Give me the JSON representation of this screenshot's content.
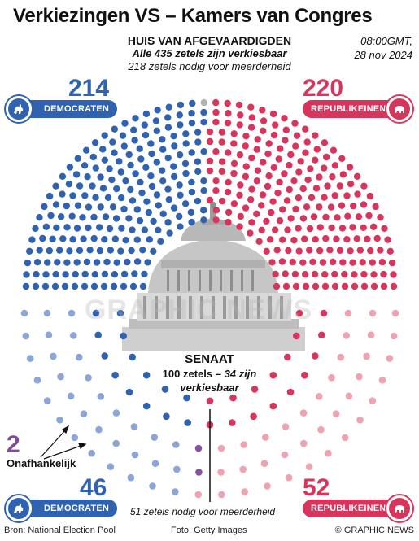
{
  "title": "Verkiezingen VS – Kamers van Congres",
  "timestamp": {
    "time": "08:00GMT,",
    "date": "28 nov 2024"
  },
  "house": {
    "heading": "HUIS VAN AFGEVAARDIGDEN",
    "sub1": "Alle 435 zetels zijn verkiesbaar",
    "sub2": "218 zetels nodig voor meerderheid",
    "dem_seats": "214",
    "rep_seats": "220",
    "undecided_seats": 1,
    "total_seats": 435
  },
  "senate": {
    "heading": "SENAAT",
    "line2_bold": "100 zetels",
    "line2_sep": " – ",
    "line2_italic": "34 zijn",
    "line3": "verkiesbaar",
    "dem_seats": "46",
    "rep_seats": "52",
    "ind_seats": "2",
    "ind_label": "Onafhankelijk",
    "majority": "51 zetels nodig voor meerderheid"
  },
  "parties": {
    "dem_label": "DEMOCRATEN",
    "rep_label": "REPUBLIKEINEN"
  },
  "colors": {
    "dem": "#2f62b1",
    "rep": "#d7355b",
    "dem_light": "#8aa6d6",
    "rep_light": "#efa2b2",
    "ind": "#8b4fa6",
    "undecided": "#b3b3b3"
  },
  "icons": {
    "dem": "donkey-icon",
    "rep": "elephant-icon"
  },
  "watermark": "GRAPHIC NEWS",
  "footer": {
    "source": "Bron: National Election Pool",
    "photo": "Foto: Getty Images",
    "credit": "© GRAPHIC NEWS"
  }
}
